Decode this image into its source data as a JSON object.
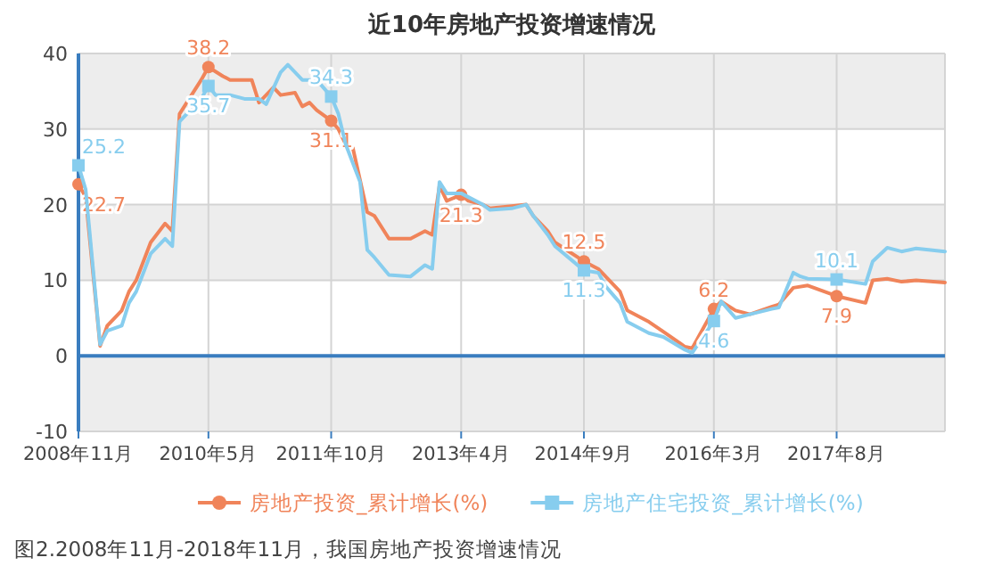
{
  "chart_data": {
    "type": "line",
    "title": "近10年房地产投资增速情况",
    "annotations": [
      "图2.2008年11月-2018年11月，我国房地产投资增速情况"
    ],
    "xlim": [
      "2008-11",
      "2018-11"
    ],
    "xticks": [
      {
        "value": "2008-11",
        "label": "2008年11月"
      },
      {
        "value": "2010-05",
        "label": "2010年5月"
      },
      {
        "value": "2011-10",
        "label": "2011年10月"
      },
      {
        "value": "2013-04",
        "label": "2013年4月"
      },
      {
        "value": "2014-09",
        "label": "2014年9月"
      },
      {
        "value": "2016-03",
        "label": "2016年3月"
      },
      {
        "value": "2017-08",
        "label": "2017年8月"
      }
    ],
    "ylim": [
      -10,
      40
    ],
    "yticks": [
      -10,
      0,
      10,
      20,
      30,
      40
    ],
    "grid": true,
    "legend": "bottom",
    "line_style": "solid",
    "ref_lines": [
      {
        "axis": "y",
        "value": 0,
        "color": "#3a7dbf"
      }
    ],
    "series": [
      {
        "name": "房地产投资_累计增长(%)",
        "color": "#f0845a",
        "x": [
          "2008-11",
          "2008-12",
          "2009-02",
          "2009-03",
          "2009-05",
          "2009-06",
          "2009-07",
          "2009-09",
          "2009-11",
          "2009-12",
          "2010-01",
          "2010-03",
          "2010-04",
          "2010-05",
          "2010-07",
          "2010-08",
          "2010-11",
          "2010-12",
          "2011-02",
          "2011-03",
          "2011-05",
          "2011-06",
          "2011-07",
          "2011-08",
          "2011-10",
          "2011-11",
          "2011-12",
          "2012-01",
          "2012-03",
          "2012-04",
          "2012-06",
          "2012-09",
          "2012-11",
          "2012-12",
          "2013-01",
          "2013-02",
          "2013-04",
          "2013-05",
          "2013-07",
          "2013-08",
          "2013-11",
          "2014-01",
          "2014-02",
          "2014-04",
          "2014-05",
          "2014-09",
          "2014-11",
          "2014-12",
          "2015-02",
          "2015-03",
          "2015-06",
          "2015-08",
          "2015-11",
          "2015-12",
          "2016-03",
          "2016-04",
          "2016-06",
          "2016-08",
          "2016-11",
          "2016-12",
          "2017-02",
          "2017-04",
          "2017-08",
          "2017-12",
          "2018-01",
          "2018-03",
          "2018-05",
          "2018-07",
          "2018-11"
        ],
        "values": [
          22.7,
          21,
          1.3,
          4,
          6,
          8.5,
          10,
          15,
          17.5,
          16.5,
          32,
          35,
          36.5,
          38.2,
          37,
          36.5,
          36.5,
          33.5,
          35.5,
          34.5,
          34.8,
          33,
          33.5,
          32.5,
          31.1,
          30,
          28,
          27.5,
          19,
          18.5,
          15.5,
          15.5,
          16.5,
          16,
          22.5,
          20.5,
          21.3,
          20.5,
          20,
          19.5,
          19.8,
          20,
          18.5,
          16.5,
          15,
          12.5,
          11.5,
          10.5,
          8.5,
          6,
          4.5,
          3.2,
          1.2,
          1,
          6.2,
          7.2,
          6,
          5.5,
          6.5,
          6.8,
          9,
          9.3,
          7.9,
          7,
          10,
          10.2,
          9.8,
          10,
          9.7
        ],
        "value_labels": [
          "22.7",
          null,
          null,
          null,
          null,
          null,
          null,
          null,
          null,
          null,
          null,
          null,
          null,
          "38.2",
          null,
          null,
          null,
          null,
          null,
          null,
          null,
          null,
          null,
          null,
          "31.1",
          null,
          null,
          null,
          null,
          null,
          null,
          null,
          null,
          null,
          null,
          null,
          "21.3",
          null,
          null,
          null,
          null,
          null,
          null,
          null,
          null,
          "12.5",
          null,
          null,
          null,
          null,
          null,
          null,
          null,
          null,
          "6.2",
          null,
          null,
          null,
          null,
          null,
          null,
          null,
          "7.9",
          null,
          null,
          null,
          null,
          null,
          null
        ]
      },
      {
        "name": "房地产住宅投资_累计增长(%)",
        "color": "#87cdee",
        "x": [
          "2008-11",
          "2008-12",
          "2009-02",
          "2009-03",
          "2009-05",
          "2009-06",
          "2009-07",
          "2009-09",
          "2009-11",
          "2009-12",
          "2010-01",
          "2010-03",
          "2010-04",
          "2010-05",
          "2010-06",
          "2010-08",
          "2010-10",
          "2010-12",
          "2011-01",
          "2011-03",
          "2011-04",
          "2011-06",
          "2011-08",
          "2011-10",
          "2011-11",
          "2011-12",
          "2012-02",
          "2012-03",
          "2012-04",
          "2012-06",
          "2012-09",
          "2012-11",
          "2012-12",
          "2013-01",
          "2013-02",
          "2013-04",
          "2013-05",
          "2013-07",
          "2013-08",
          "2013-11",
          "2014-01",
          "2014-02",
          "2014-04",
          "2014-05",
          "2014-09",
          "2014-11",
          "2014-12",
          "2015-02",
          "2015-03",
          "2015-06",
          "2015-08",
          "2015-11",
          "2015-12",
          "2016-03",
          "2016-04",
          "2016-06",
          "2016-08",
          "2016-11",
          "2016-12",
          "2017-02",
          "2017-03",
          "2017-04",
          "2017-08",
          "2017-12",
          "2018-01",
          "2018-03",
          "2018-05",
          "2018-07",
          "2018-11"
        ],
        "values": [
          25.2,
          22,
          1.5,
          3.3,
          4,
          7,
          8.5,
          13.5,
          15.5,
          14.5,
          31,
          33,
          34,
          35.7,
          34.5,
          34.5,
          34,
          34,
          33.3,
          37.5,
          38.5,
          36.5,
          36.5,
          34.3,
          32,
          28,
          23,
          14,
          13,
          10.7,
          10.5,
          12,
          11.5,
          23,
          21.5,
          21.5,
          21,
          20,
          19.3,
          19.5,
          20,
          18.5,
          16,
          14.5,
          11.3,
          11,
          9.2,
          7,
          4.5,
          3,
          2.5,
          0.8,
          0.4,
          4.6,
          7.2,
          5,
          5.5,
          6.2,
          6.4,
          11,
          10.5,
          10.2,
          10.1,
          9.5,
          12.5,
          14.3,
          13.8,
          14.2,
          13.8
        ],
        "value_labels": [
          "25.2",
          null,
          null,
          null,
          null,
          null,
          null,
          null,
          null,
          null,
          null,
          null,
          null,
          "35.7",
          null,
          null,
          null,
          null,
          null,
          null,
          null,
          null,
          null,
          "34.3",
          null,
          null,
          null,
          null,
          null,
          null,
          null,
          null,
          null,
          null,
          null,
          null,
          null,
          null,
          null,
          null,
          null,
          null,
          null,
          null,
          "11.3",
          null,
          null,
          null,
          null,
          null,
          null,
          null,
          null,
          "4.6",
          null,
          null,
          null,
          null,
          null,
          null,
          null,
          null,
          "10.1",
          null,
          null,
          null,
          null,
          null,
          null
        ]
      }
    ]
  }
}
